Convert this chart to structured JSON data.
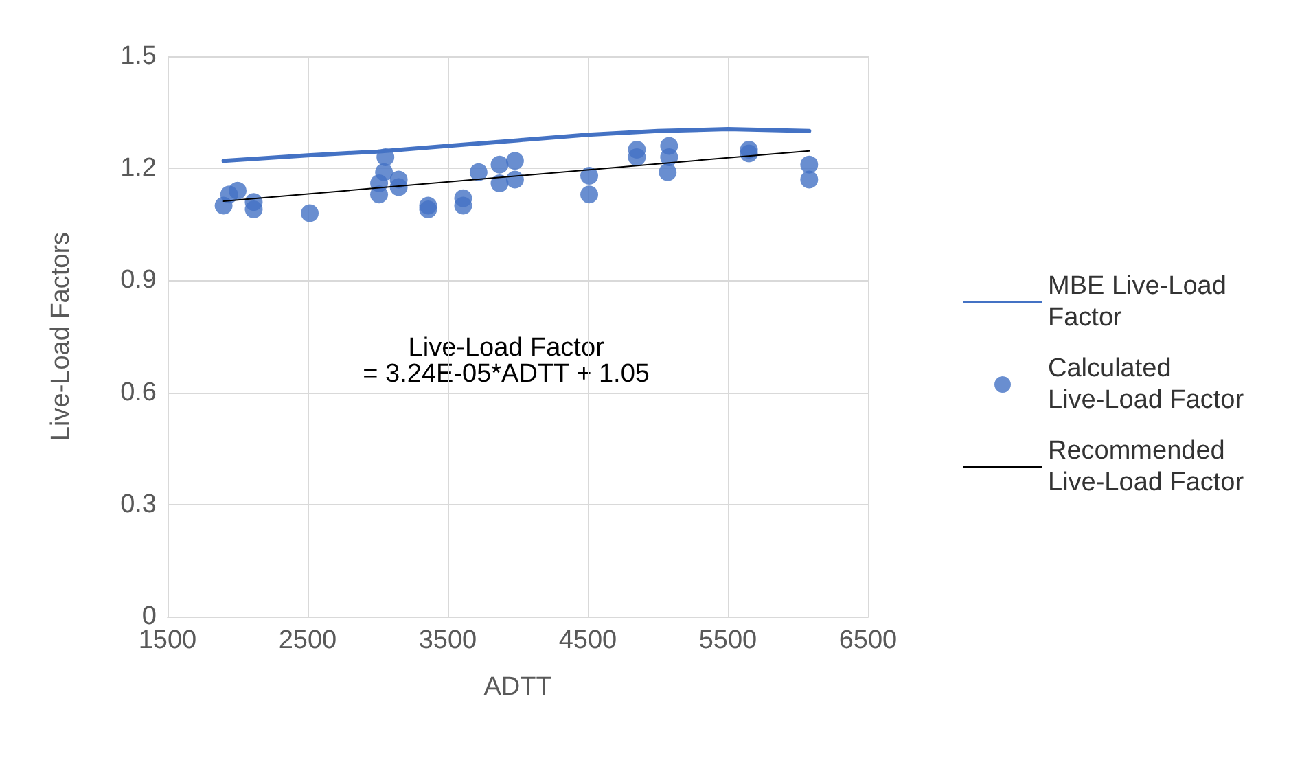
{
  "chart_data": {
    "type": "scatter",
    "xlabel": "ADTT",
    "ylabel": "Live-Load Factors",
    "xlim": [
      1500,
      6500
    ],
    "xticks": [
      1500,
      2500,
      3500,
      4500,
      5500,
      6500
    ],
    "ylim": [
      0,
      1.5
    ],
    "yticks": [
      0,
      0.3,
      0.6,
      0.9,
      1.2,
      1.5
    ],
    "grid": true,
    "legend": "right",
    "annotations": [
      "Live-Load Factor\n= 3.24E-05*ADTT + 1.05"
    ],
    "series": [
      {
        "name": "MBE Live-Load Factor",
        "type": "line",
        "color": "#4472c4",
        "marker": "none",
        "x": [
          1900,
          2500,
          3000,
          3500,
          4000,
          4500,
          5000,
          5500,
          6080
        ],
        "values": [
          1.22,
          1.235,
          1.245,
          1.26,
          1.275,
          1.29,
          1.3,
          1.305,
          1.3
        ]
      },
      {
        "name": "Calculated Live-Load Factor",
        "color": "#4472c4",
        "marker": "circle",
        "x": [
          1900,
          1940,
          2000,
          2115,
          2115,
          2515,
          3055,
          3045,
          3010,
          3010,
          3150,
          3150,
          3360,
          3360,
          3610,
          3610,
          3720,
          3870,
          3870,
          3980,
          3980,
          4510,
          4510,
          4850,
          4850,
          5080,
          5080,
          5070,
          5650,
          5650,
          6080,
          6080
        ],
        "values": [
          1.1,
          1.13,
          1.14,
          1.11,
          1.09,
          1.08,
          1.23,
          1.19,
          1.16,
          1.13,
          1.17,
          1.15,
          1.1,
          1.09,
          1.12,
          1.1,
          1.19,
          1.21,
          1.16,
          1.22,
          1.17,
          1.18,
          1.13,
          1.25,
          1.23,
          1.26,
          1.23,
          1.19,
          1.25,
          1.24,
          1.21,
          1.17
        ]
      },
      {
        "name": "Recommended Live-Load Factor",
        "type": "line",
        "color": "#000000",
        "marker": "none",
        "x": [
          1900,
          6080
        ],
        "values": [
          1.112,
          1.247
        ]
      }
    ]
  }
}
